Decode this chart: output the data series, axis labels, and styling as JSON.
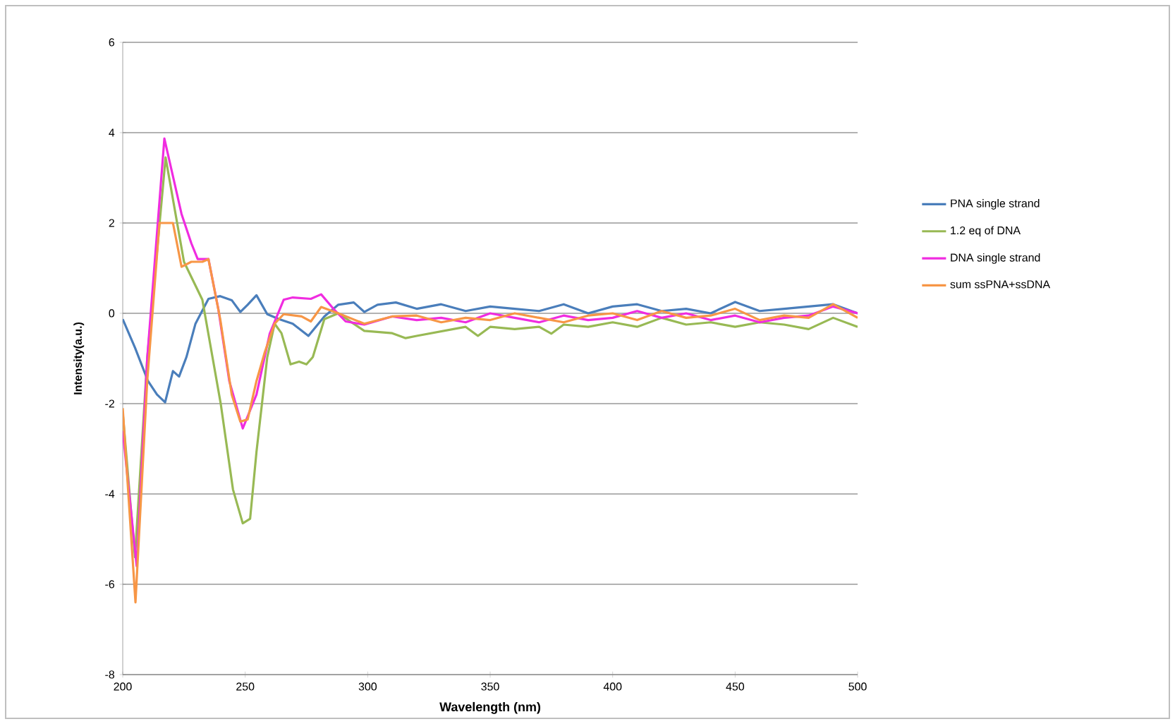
{
  "chart_data": {
    "type": "line",
    "xlabel": "Wavelength (nm)",
    "ylabel": "Intensity(a.u.)",
    "xlim": [
      200,
      500
    ],
    "xticks": [
      200,
      250,
      300,
      350,
      400,
      450,
      500
    ],
    "ylim": [
      -8,
      6
    ],
    "yticks": [
      -8,
      -6,
      -4,
      -2,
      0,
      2,
      4,
      6
    ],
    "grid": "y",
    "legend": "right",
    "marker": "none",
    "line_style": "solid",
    "series": [
      {
        "name": "PNA single strand",
        "color": "#4a7ebb",
        "x": [
          200,
          205,
          210.3,
          214,
          217.3,
          220.5,
          223,
          226,
          229.7,
          235,
          239.8,
          244.5,
          248,
          251,
          254.6,
          259,
          263.8,
          269.4,
          275.8,
          282.3,
          288,
          294.3,
          298.6,
          304,
          311.5,
          320,
          330,
          340,
          350,
          360,
          370,
          380,
          390,
          400,
          410,
          420,
          430,
          440,
          450,
          460,
          470,
          480,
          490,
          500
        ],
        "values": [
          -0.13,
          -0.76,
          -1.5,
          -1.8,
          -1.97,
          -1.28,
          -1.4,
          -0.97,
          -0.23,
          0.32,
          0.38,
          0.29,
          0.03,
          0.19,
          0.4,
          -0.02,
          -0.13,
          -0.23,
          -0.5,
          -0.07,
          0.19,
          0.24,
          0.03,
          0.19,
          0.24,
          0.1,
          0.2,
          0.05,
          0.15,
          0.1,
          0.05,
          0.2,
          0.0,
          0.15,
          0.2,
          0.05,
          0.1,
          0.0,
          0.25,
          0.05,
          0.1,
          0.15,
          0.2,
          0.0
        ]
      },
      {
        "name": "1.2 eq of DNA",
        "color": "#98b954",
        "x": [
          200,
          205,
          210,
          217.5,
          225,
          232.5,
          240,
          245,
          249,
          252,
          254.6,
          259,
          262,
          264.8,
          268.5,
          272,
          275,
          277.6,
          282.3,
          288,
          298.6,
          310,
          315.5,
          320,
          330,
          340,
          345,
          350,
          360,
          370,
          375,
          380,
          390,
          400,
          410,
          420,
          430,
          440,
          450,
          460,
          470,
          480,
          490,
          500
        ],
        "values": [
          -2.2,
          -5.4,
          -1.0,
          3.45,
          1.14,
          0.3,
          -2.0,
          -3.9,
          -4.65,
          -4.55,
          -3.07,
          -0.97,
          -0.23,
          -0.44,
          -1.13,
          -1.07,
          -1.13,
          -0.97,
          -0.13,
          0.0,
          -0.39,
          -0.44,
          -0.55,
          -0.5,
          -0.4,
          -0.3,
          -0.5,
          -0.3,
          -0.35,
          -0.3,
          -0.45,
          -0.25,
          -0.3,
          -0.2,
          -0.3,
          -0.1,
          -0.25,
          -0.2,
          -0.3,
          -0.2,
          -0.25,
          -0.35,
          -0.1,
          -0.3
        ]
      },
      {
        "name": "DNA single strand",
        "color": "#f02ce0",
        "x": [
          200,
          205.7,
          210,
          217,
          224,
          228,
          230.6,
          235,
          239,
          243.5,
          249,
          254.6,
          260,
          265.7,
          269.4,
          276.8,
          281,
          286,
          291,
          298.6,
          310,
          320,
          330,
          340,
          350,
          360,
          370,
          380,
          390,
          400,
          410,
          420,
          430,
          440,
          450,
          460,
          470,
          480,
          490,
          500
        ],
        "values": [
          -2.6,
          -5.6,
          -1.0,
          3.87,
          2.2,
          1.55,
          1.2,
          1.2,
          0.1,
          -1.5,
          -2.55,
          -1.8,
          -0.45,
          0.3,
          0.35,
          0.32,
          0.42,
          0.1,
          -0.18,
          -0.25,
          -0.07,
          -0.15,
          -0.1,
          -0.2,
          0.0,
          -0.1,
          -0.2,
          -0.05,
          -0.15,
          -0.1,
          0.05,
          -0.1,
          0.0,
          -0.15,
          -0.05,
          -0.2,
          -0.1,
          -0.05,
          0.15,
          0.0
        ]
      },
      {
        "name": "sum ssPNA+ssDNA",
        "color": "#f79646",
        "x": [
          200,
          205.2,
          210,
          215,
          220.5,
          224,
          228,
          232.5,
          235,
          239.8,
          244.5,
          248,
          251,
          254.6,
          258,
          262,
          265.7,
          273,
          276.8,
          281,
          288,
          298.6,
          310,
          320,
          330,
          340,
          350,
          360,
          370,
          380,
          390,
          400,
          410,
          420,
          430,
          440,
          450,
          460,
          470,
          480,
          490,
          500
        ],
        "values": [
          -2.1,
          -6.4,
          -1.5,
          2.0,
          2.0,
          1.03,
          1.14,
          1.14,
          1.2,
          -0.13,
          -1.8,
          -2.4,
          -2.35,
          -1.5,
          -0.86,
          -0.23,
          -0.02,
          -0.07,
          -0.18,
          0.14,
          0.0,
          -0.23,
          -0.07,
          -0.05,
          -0.2,
          -0.1,
          -0.15,
          0.0,
          -0.1,
          -0.2,
          -0.05,
          0.0,
          -0.15,
          0.05,
          -0.1,
          -0.05,
          0.1,
          -0.15,
          -0.05,
          -0.1,
          0.2,
          -0.1
        ]
      }
    ]
  }
}
